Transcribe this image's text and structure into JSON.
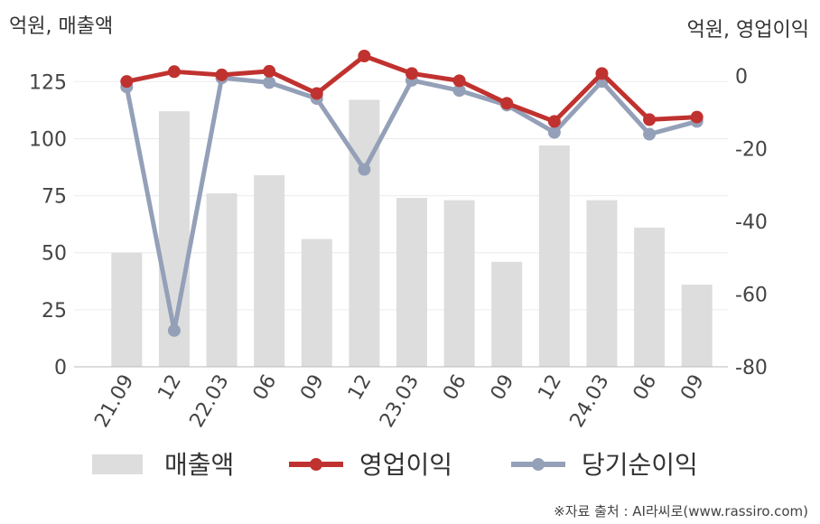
{
  "chart_data": {
    "type": "bar+line",
    "left_axis_label": "억원, 매출액",
    "right_axis_label": "억원, 영업이익",
    "categories": [
      "21.09",
      "12",
      "22.03",
      "06",
      "09",
      "12",
      "23.03",
      "06",
      "09",
      "12",
      "24.03",
      "06",
      "09"
    ],
    "left_axis": {
      "range": [
        0,
        137
      ],
      "ticks": [
        0,
        25,
        50,
        75,
        100,
        125
      ]
    },
    "right_axis": {
      "range": [
        -80,
        6
      ],
      "ticks": [
        0,
        -20,
        -40,
        -60,
        -80
      ]
    },
    "bar_series": {
      "name": "매출액",
      "axis": "left",
      "color": "#dddddd",
      "values": [
        50,
        112,
        76,
        84,
        56,
        117,
        74,
        73,
        46,
        97,
        73,
        61,
        36
      ]
    },
    "line_series": [
      {
        "name": "영업이익",
        "axis": "right",
        "color": "#c0322f",
        "values": [
          -1.5,
          1.2,
          0.3,
          1.3,
          -4.8,
          5.5,
          0.7,
          -1.3,
          -7.5,
          -12.5,
          0.7,
          -12.0,
          -11.3
        ]
      },
      {
        "name": "당기순이익",
        "axis": "right",
        "color": "#94a0b8",
        "values": [
          -3.0,
          -70.0,
          -0.5,
          -1.8,
          -6.2,
          -25.7,
          -1.2,
          -4.0,
          -8.0,
          -15.5,
          -1.5,
          -16.0,
          -12.5
        ]
      }
    ],
    "grid": true,
    "legend_position": "bottom"
  },
  "source_note": "※자료 출처 : AI라씨로(www.rassiro.com)"
}
